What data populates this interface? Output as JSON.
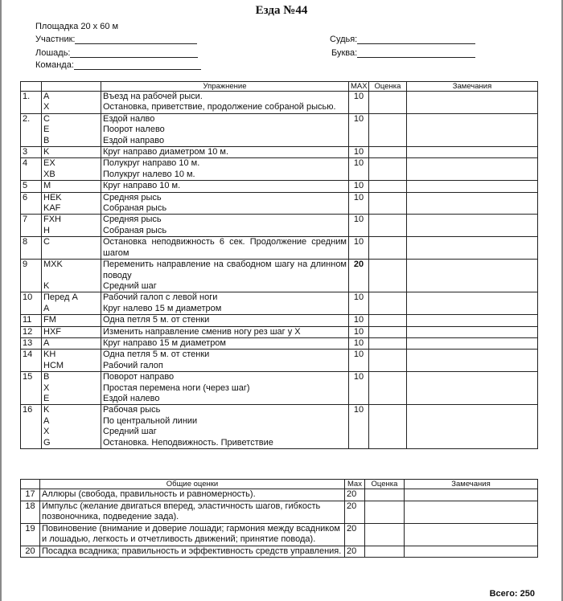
{
  "title": "Езда №44",
  "arena": "Площадка 20 х 60 м",
  "fields": {
    "participant": "Участник:",
    "horse": "Лошадь:",
    "team": "Команда:",
    "judge": "Судья:",
    "letter": "Буква:"
  },
  "table1": {
    "headers": [
      "",
      "",
      "Упражнение",
      "MAX",
      "Оценка",
      "Замечания"
    ],
    "rows": [
      {
        "num": "1.",
        "letters": [
          "A",
          "X"
        ],
        "text": [
          "Въезд на рабочей рыси.",
          "Остановка, приветствие, продолжение собраной рысью."
        ],
        "max": "10"
      },
      {
        "num": "2.",
        "letters": [
          "C",
          "E",
          "B"
        ],
        "text": [
          "Ездой налво",
          "Поорот налево",
          "Ездой направо"
        ],
        "max": "10"
      },
      {
        "num": "3",
        "letters": [
          "K"
        ],
        "text": [
          "Круг направо диаметром 10 м."
        ],
        "max": "10"
      },
      {
        "num": "4",
        "letters": [
          "EX",
          "XB"
        ],
        "text": [
          "Полукруг направо 10 м.",
          "Полукруг налево 10 м."
        ],
        "max": "10"
      },
      {
        "num": "5",
        "letters": [
          "M"
        ],
        "text": [
          "Круг направо 10 м."
        ],
        "max": "10"
      },
      {
        "num": "6",
        "letters": [
          "HEK",
          "KAF"
        ],
        "text": [
          "Средняя рысь",
          "Собраная рысь"
        ],
        "max": "10"
      },
      {
        "num": "7",
        "letters": [
          "FXH",
          "H"
        ],
        "text": [
          "Средняя рысь",
          "Собраная рысь"
        ],
        "max": "10"
      },
      {
        "num": "8",
        "letters": [
          "C"
        ],
        "text": [
          "Остановка неподвижность 6 сек. Продолжение средним шагом"
        ],
        "max": "10"
      },
      {
        "num": "9",
        "letters": [
          "MXK",
          "",
          "K"
        ],
        "text": [
          "Переменить направление на свабодном шагу на длинном поводу",
          "Средний шаг"
        ],
        "max": "20"
      },
      {
        "num": "10",
        "letters": [
          "Перед A",
          "A"
        ],
        "text": [
          "Рабочий галоп с левой ноги",
          "Круг налево 15 м диаметром"
        ],
        "max": "10"
      },
      {
        "num": "11",
        "letters": [
          "FM"
        ],
        "text": [
          "Одна петля 5 м. от стенки"
        ],
        "max": "10"
      },
      {
        "num": "12",
        "letters": [
          "HXF"
        ],
        "text": [
          "Изменить направление сменив ногу рез шаг у X"
        ],
        "max": "10"
      },
      {
        "num": "13",
        "letters": [
          "A"
        ],
        "text": [
          "Круг направо 15 м диаметром"
        ],
        "max": "10"
      },
      {
        "num": "14",
        "letters": [
          "KH",
          "HCM"
        ],
        "text": [
          "Одна петля 5 м. от стенки",
          "Рабочий галоп"
        ],
        "max": "10"
      },
      {
        "num": "15",
        "letters": [
          "B",
          "X",
          "E"
        ],
        "text": [
          "Поворот направо",
          "Простая перемена ноги (через шаг)",
          "Ездой налево"
        ],
        "max": "10"
      },
      {
        "num": "16",
        "letters": [
          "K",
          "A",
          "X",
          "G"
        ],
        "text": [
          "Рабочая рысь",
          "По центральной линии",
          "Средний шаг",
          "Остановка. Неподвижность. Приветствие"
        ],
        "max": "10"
      }
    ]
  },
  "table2": {
    "headers": [
      "",
      "Общие оценки",
      "Max",
      "Оценка",
      "Замечания"
    ],
    "rows": [
      {
        "num": "17",
        "text": "Аллюры (свобода, правильность и равномерность).",
        "max": "20"
      },
      {
        "num": "18",
        "text": "Импульс (желание двигаться вперед, эластичность шагов, гибкость позвоночника, подведение зада).",
        "max": "20"
      },
      {
        "num": "19",
        "text": "Повиновение (внимание и доверие лошади; гармония между всадником и лошадью, легкость и отчетливость движений; принятие повода).",
        "max": "20"
      },
      {
        "num": "20",
        "text": "Посадка всадника; правильность и эффективность средств управления.",
        "max": "20"
      }
    ]
  },
  "total": "Всего: 250"
}
